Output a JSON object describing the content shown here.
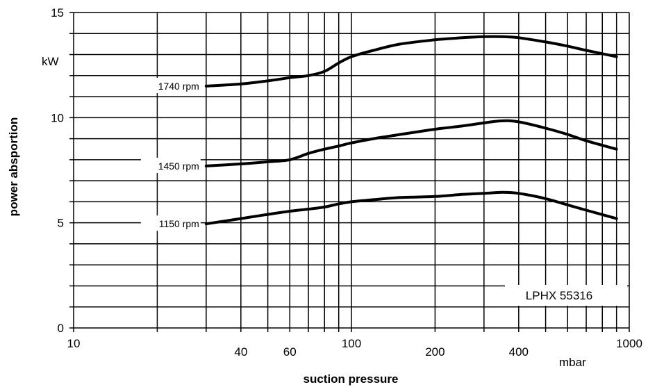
{
  "chart_data": {
    "type": "line",
    "xlabel": "suction pressure",
    "ylabel": "power absportion",
    "x_unit": "mbar",
    "y_unit": "kW",
    "x_scale": "log",
    "xlim": [
      10,
      1000
    ],
    "ylim": [
      0,
      15
    ],
    "grid": true,
    "x_tick_labels": [
      {
        "value": 10,
        "label": "10"
      },
      {
        "value": 40,
        "label": "40"
      },
      {
        "value": 60,
        "label": "60"
      },
      {
        "value": 100,
        "label": "100"
      },
      {
        "value": 200,
        "label": "200"
      },
      {
        "value": 400,
        "label": "400"
      },
      {
        "value": 1000,
        "label": "1000"
      }
    ],
    "y_tick_labels": [
      {
        "value": 0,
        "label": "0"
      },
      {
        "value": 5,
        "label": "5"
      },
      {
        "value": 10,
        "label": "10"
      },
      {
        "value": 15,
        "label": "15"
      }
    ],
    "y_gridlines": [
      0,
      1,
      2,
      3,
      4,
      5,
      6,
      7,
      8,
      9,
      10,
      11,
      12,
      13,
      14,
      15
    ],
    "x_gridlines": [
      10,
      20,
      30,
      40,
      50,
      60,
      70,
      80,
      90,
      100,
      200,
      300,
      400,
      500,
      600,
      700,
      800,
      900,
      1000
    ],
    "annotation": "LPHX 55316",
    "series": [
      {
        "name": "1740 rpm",
        "x": [
          30,
          40,
          50,
          60,
          70,
          80,
          90,
          100,
          120,
          150,
          200,
          250,
          300,
          350,
          400,
          500,
          600,
          700,
          900
        ],
        "y": [
          11.5,
          11.6,
          11.75,
          11.9,
          12.0,
          12.2,
          12.6,
          12.9,
          13.2,
          13.5,
          13.7,
          13.8,
          13.85,
          13.85,
          13.8,
          13.6,
          13.4,
          13.2,
          12.9
        ]
      },
      {
        "name": "1450 rpm",
        "x": [
          30,
          40,
          50,
          60,
          70,
          80,
          90,
          100,
          120,
          150,
          200,
          250,
          300,
          350,
          400,
          500,
          600,
          700,
          900
        ],
        "y": [
          7.7,
          7.8,
          7.9,
          8.0,
          8.3,
          8.5,
          8.65,
          8.8,
          9.0,
          9.2,
          9.45,
          9.6,
          9.75,
          9.85,
          9.8,
          9.5,
          9.2,
          8.9,
          8.5
        ]
      },
      {
        "name": "1150 rpm",
        "x": [
          30,
          40,
          50,
          60,
          70,
          80,
          90,
          100,
          120,
          150,
          200,
          250,
          300,
          350,
          400,
          500,
          600,
          700,
          900
        ],
        "y": [
          4.95,
          5.2,
          5.4,
          5.55,
          5.65,
          5.75,
          5.9,
          6.0,
          6.1,
          6.2,
          6.25,
          6.35,
          6.4,
          6.45,
          6.4,
          6.15,
          5.85,
          5.6,
          5.2
        ]
      }
    ]
  }
}
